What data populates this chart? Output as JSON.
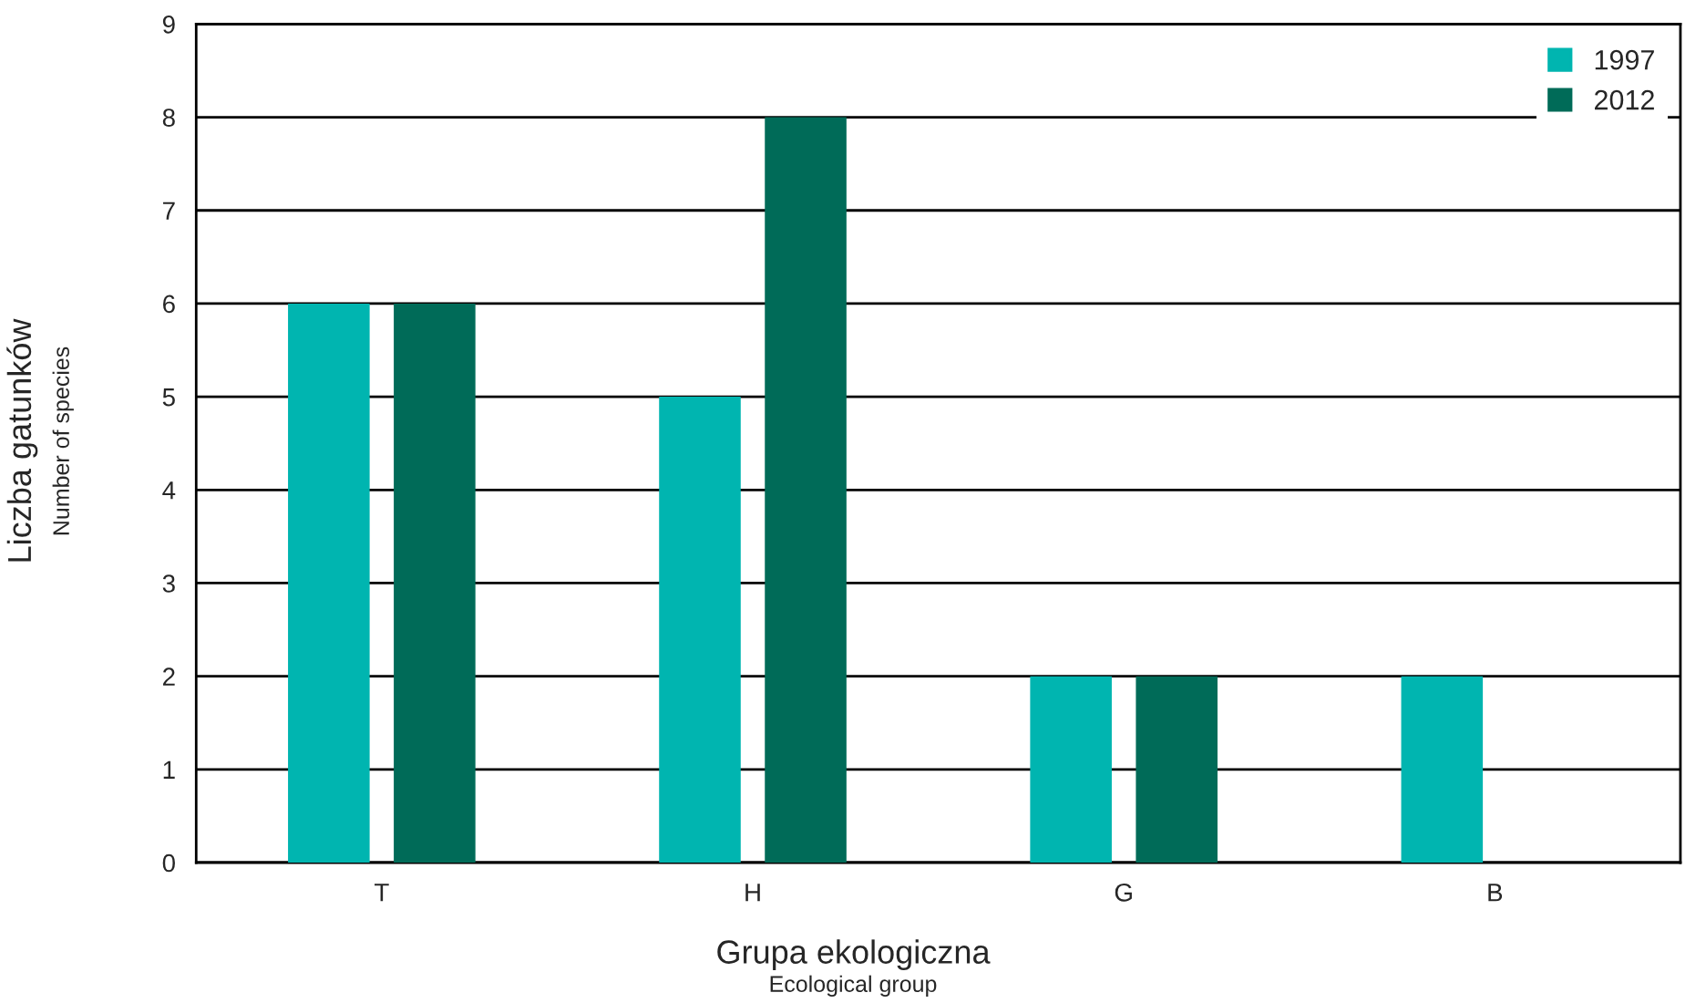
{
  "chart_data": {
    "type": "bar",
    "xlabel": "Grupa ekologiczna\nEcological group",
    "ylabel": "Liczba gatunków\nNumber of species",
    "categories": [
      "T",
      "H",
      "G",
      "B"
    ],
    "series": [
      {
        "name": "1997",
        "color": "#00b5b0",
        "values": [
          6,
          5,
          2,
          2
        ]
      },
      {
        "name": "2012",
        "color": "#006b58",
        "values": [
          6,
          8,
          2,
          null
        ]
      }
    ],
    "ylim": [
      0,
      9
    ],
    "yticks": [
      0,
      1,
      2,
      3,
      4,
      5,
      6,
      7,
      8,
      9
    ],
    "grid": "y",
    "legend": "top right"
  }
}
